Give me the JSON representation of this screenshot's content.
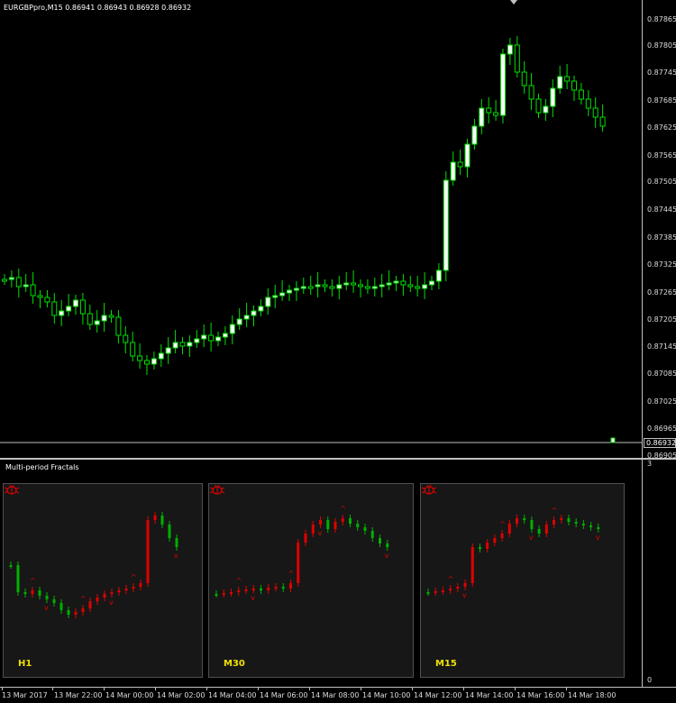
{
  "chart": {
    "title": "EURGBPpro,M15  0.86941 0.86943 0.86928 0.86932",
    "current_price": "0.86932",
    "bull_color": "#ffffff",
    "bear_color": "#000000",
    "wick_color": "#00e000",
    "price_labels": [
      "0.87865",
      "0.87805",
      "0.87745",
      "0.87685",
      "0.87625",
      "0.87565",
      "0.87505",
      "0.87445",
      "0.87385",
      "0.87325",
      "0.87265",
      "0.87205",
      "0.87145",
      "0.87085",
      "0.87025",
      "0.86965",
      "0.86905"
    ]
  },
  "indicator": {
    "title": "Multi-period Fractals",
    "scale_top": "3",
    "scale_bottom": "0",
    "panels": [
      {
        "timeframe": "H1",
        "icon": "bug-icon"
      },
      {
        "timeframe": "M30",
        "icon": "bug-icon"
      },
      {
        "timeframe": "M15",
        "icon": "bug-icon"
      }
    ],
    "up_color": "#e00000",
    "down_color": "#00b000",
    "label_color": "#f0e000"
  },
  "time_axis": {
    "labels": [
      "13 Mar 2017",
      "13 Mar 22:00",
      "14 Mar 00:00",
      "14 Mar 02:00",
      "14 Mar 04:00",
      "14 Mar 06:00",
      "14 Mar 08:00",
      "14 Mar 10:00",
      "14 Mar 12:00",
      "14 Mar 14:00",
      "14 Mar 16:00",
      "14 Mar 18:00"
    ]
  }
}
